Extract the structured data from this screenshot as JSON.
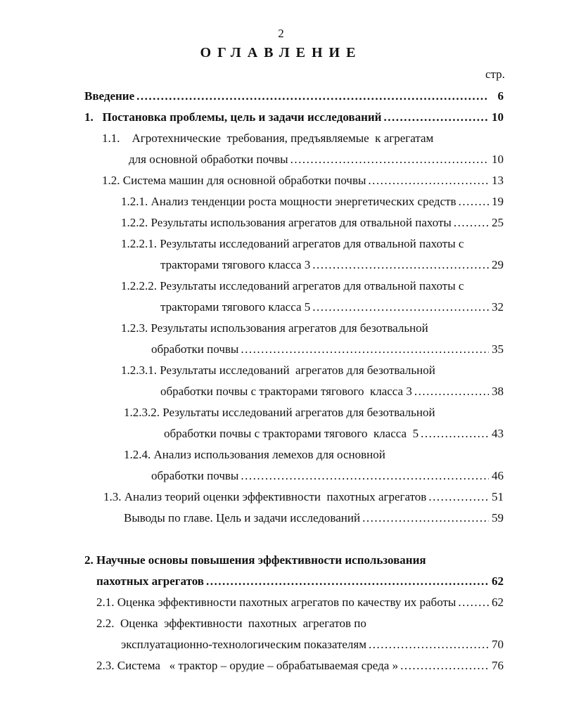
{
  "page_number": "2",
  "title": "ОГЛАВЛЕНИЕ",
  "page_column_label": "стр.",
  "lines": [
    {
      "text": "Введение",
      "page": "6",
      "bold": true
    },
    {
      "text": "1.   Постановка проблемы, цель и задачи исследований",
      "page": "10",
      "bold": true
    },
    {
      "text": "1.1.    Агротехнические  требования, предъявляемые  к агрегатам"
    },
    {
      "text": "для основной обработки почвы",
      "page": "10"
    },
    {
      "text": "1.2. Система машин для основной обработки почвы",
      "page": "13"
    },
    {
      "text": "1.2.1. Анализ тенденции роста мощности энергетических средств",
      "page": "19"
    },
    {
      "text": "1.2.2. Результаты использования агрегатов для отвальной пахоты",
      "page": "25"
    },
    {
      "text": "1.2.2.1. Результаты исследований агрегатов для отвальной пахоты с"
    },
    {
      "text": "тракторами тягового класса 3",
      "page": "29"
    },
    {
      "text": "1.2.2.2. Результаты исследований агрегатов для отвальной пахоты с"
    },
    {
      "text": "тракторами тягового класса 5",
      "page": "32"
    },
    {
      "text": "1.2.3. Результаты использования агрегатов для безотвальной"
    },
    {
      "text": "обработки почвы",
      "page": "35"
    },
    {
      "text": "1.2.3.1. Результаты исследований  агрегатов для безотвальной"
    },
    {
      "text": "обработки почвы с тракторами тягового  класса 3",
      "page": "38"
    },
    {
      "text": "1.2.3.2. Результаты исследований агрегатов для безотвальной"
    },
    {
      "text": "обработки почвы с тракторами тягового  класса  5",
      "page": "43"
    },
    {
      "text": "1.2.4. Анализ использования лемехов для основной"
    },
    {
      "text": "обработки почвы",
      "page": "46"
    },
    {
      "text": "1.3. Анализ теорий оценки эффективности  пахотных агрегатов",
      "page": "51"
    },
    {
      "text": "Выводы по главе. Цель и задачи исследований",
      "page": "59"
    },
    {
      "text": "2. Научные основы повышения эффективности использования",
      "bold": true
    },
    {
      "text": "пахотных агрегатов",
      "page": "62",
      "bold": true
    },
    {
      "text": "2.1. Оценка эффективности пахотных агрегатов по качеству их работы",
      "page": "62"
    },
    {
      "text": "2.2.  Оценка  эффективности  пахотных  агрегатов по"
    },
    {
      "text": "эксплуатационно-технологическим показателям",
      "page": "70"
    },
    {
      "text": "2.3. Система   « трактор – орудие – обрабатываемая среда »",
      "page": "76"
    }
  ]
}
